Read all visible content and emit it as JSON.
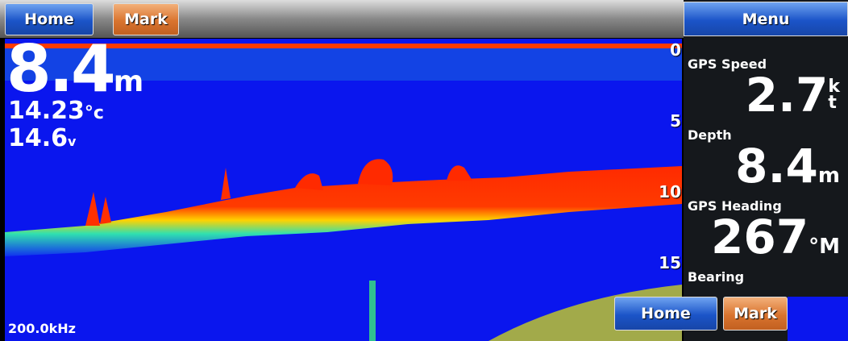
{
  "toolbar": {
    "home": "Home",
    "mark": "Mark",
    "menu": "Menu"
  },
  "readout": {
    "depth": "8.4",
    "depth_unit": "m",
    "temperature": "14.23",
    "temperature_unit": "°c",
    "voltage": "14.6",
    "voltage_unit": "v"
  },
  "depth_scale": [
    0,
    5,
    10,
    15
  ],
  "frequency": "200.0kHz",
  "data_fields": [
    {
      "label": "GPS Speed",
      "value": "2.7",
      "unit_top": "k",
      "unit_bottom": "t"
    },
    {
      "label": "Depth",
      "value": "8.4",
      "unit": "m"
    },
    {
      "label": "GPS Heading",
      "value": "267",
      "unit": "°M"
    },
    {
      "label": "Bearing"
    }
  ],
  "overlay": {
    "home": "Home",
    "mark": "Mark"
  }
}
